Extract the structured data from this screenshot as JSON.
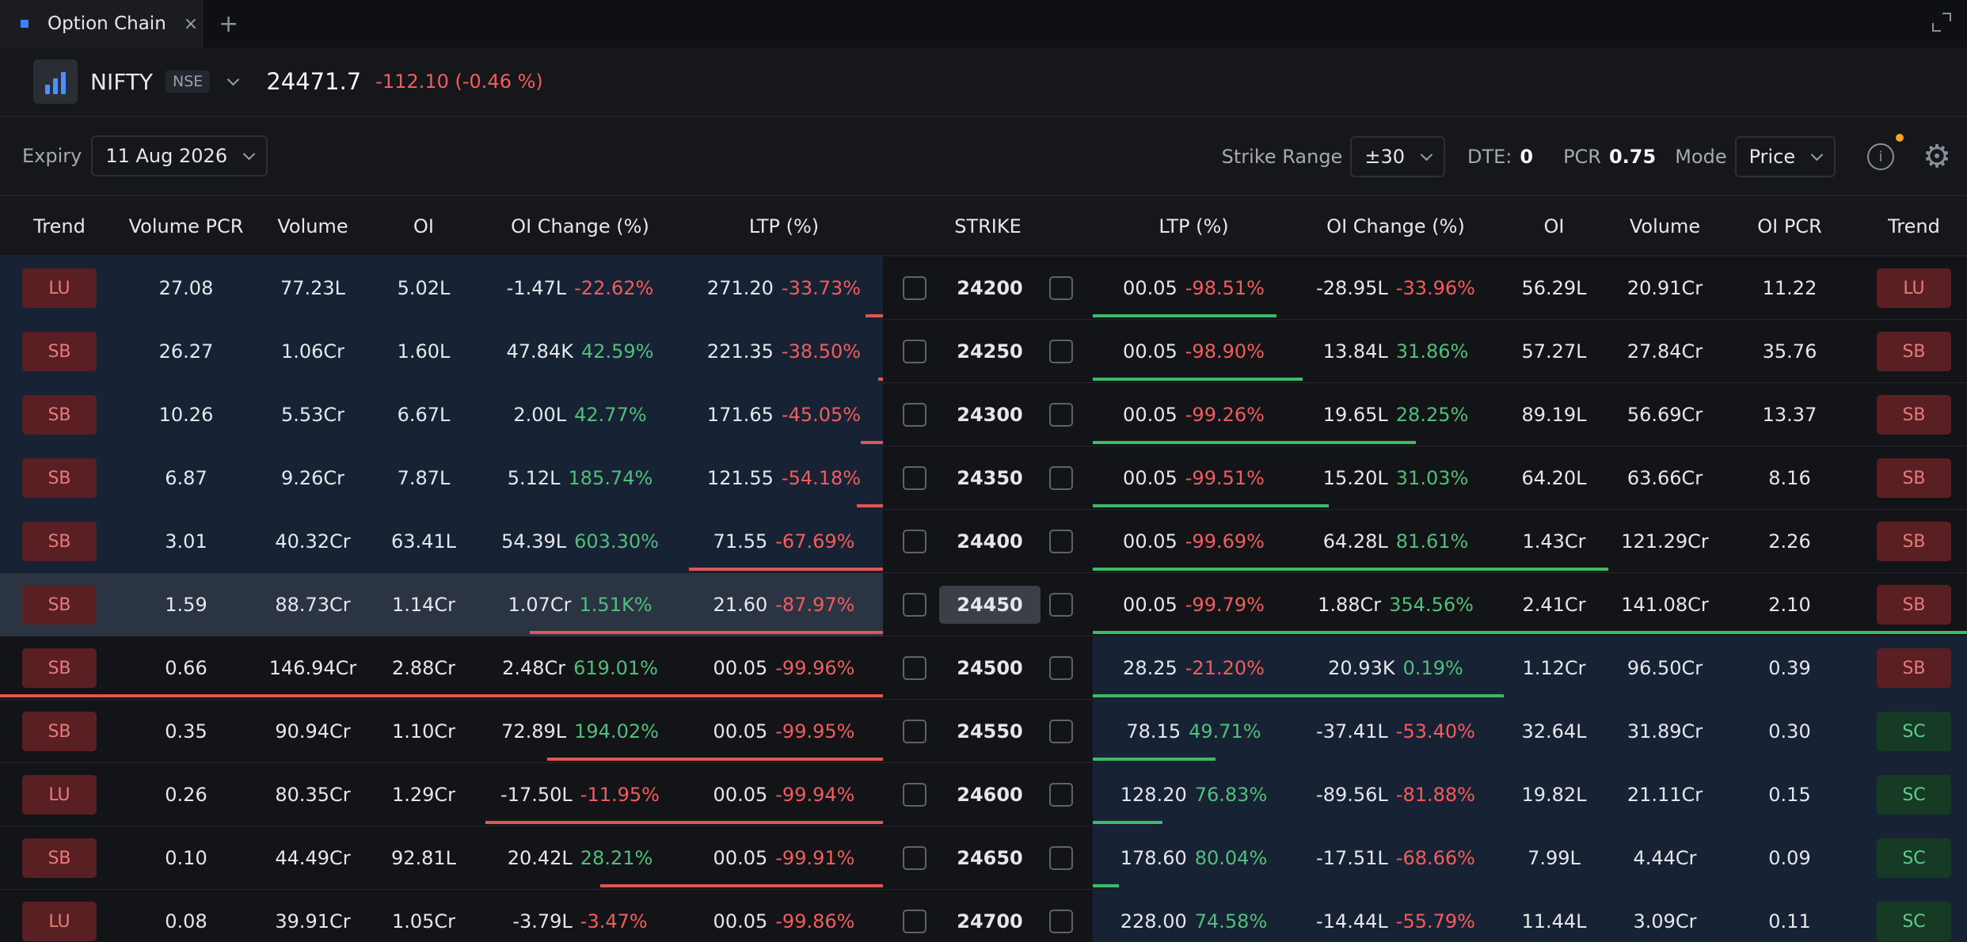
{
  "tab": {
    "label": "Option Chain",
    "close": "×",
    "add": "+"
  },
  "symbol": {
    "name": "NIFTY",
    "exchange": "NSE",
    "price": "24471.7",
    "change": "-112.10 (-0.46 %)"
  },
  "controls": {
    "expiry_label": "Expiry",
    "expiry_value": "11 Aug 2026",
    "strike_range_label": "Strike Range",
    "strike_range_value": "±30",
    "dte_label": "DTE:",
    "dte_value": "0",
    "pcr_label": "PCR",
    "pcr_value": "0.75",
    "mode_label": "Mode",
    "mode_value": "Price",
    "info_glyph": "i"
  },
  "columns": {
    "calls": [
      "Trend",
      "Volume PCR",
      "Volume",
      "OI",
      "OI Change (%)",
      "LTP (%)"
    ],
    "strike": "STRIKE",
    "puts": [
      "LTP (%)",
      "OI Change (%)",
      "OI",
      "Volume",
      "OI PCR",
      "Trend"
    ]
  },
  "colors": {
    "itm_call": "#172234",
    "itm_put": "#172234",
    "atm_row": "#2b3442",
    "red": "#f25c5c",
    "green": "#4fbf7a"
  },
  "rows": [
    {
      "strike": "24200",
      "atm": false,
      "call": {
        "trend": "LU",
        "vol_pcr": "27.08",
        "volume": "77.23L",
        "oi": "5.02L",
        "oi_chg": "-1.47L",
        "oi_chg_pct": "-22.62%",
        "ltp": "271.20",
        "ltp_pct": "-33.73%",
        "bar": 0.02
      },
      "put": {
        "ltp": "00.05",
        "ltp_pct": "-98.51%",
        "oi_chg": "-28.95L",
        "oi_chg_pct": "-33.96%",
        "oi": "56.29L",
        "volume": "20.91Cr",
        "oi_pcr": "11.22",
        "trend": "LU",
        "bar": 0.21
      }
    },
    {
      "strike": "24250",
      "atm": false,
      "call": {
        "trend": "SB",
        "vol_pcr": "26.27",
        "volume": "1.06Cr",
        "oi": "1.60L",
        "oi_chg": "47.84K",
        "oi_chg_pct": "42.59%",
        "ltp": "221.35",
        "ltp_pct": "-38.50%",
        "bar": 0.005
      },
      "put": {
        "ltp": "00.05",
        "ltp_pct": "-98.90%",
        "oi_chg": "13.84L",
        "oi_chg_pct": "31.86%",
        "oi": "57.27L",
        "volume": "27.84Cr",
        "oi_pcr": "35.76",
        "trend": "SB",
        "bar": 0.24
      }
    },
    {
      "strike": "24300",
      "atm": false,
      "call": {
        "trend": "SB",
        "vol_pcr": "10.26",
        "volume": "5.53Cr",
        "oi": "6.67L",
        "oi_chg": "2.00L",
        "oi_chg_pct": "42.77%",
        "ltp": "171.65",
        "ltp_pct": "-45.05%",
        "bar": 0.025
      },
      "put": {
        "ltp": "00.05",
        "ltp_pct": "-99.26%",
        "oi_chg": "19.65L",
        "oi_chg_pct": "28.25%",
        "oi": "89.19L",
        "volume": "56.69Cr",
        "oi_pcr": "13.37",
        "trend": "SB",
        "bar": 0.37
      }
    },
    {
      "strike": "24350",
      "atm": false,
      "call": {
        "trend": "SB",
        "vol_pcr": "6.87",
        "volume": "9.26Cr",
        "oi": "7.87L",
        "oi_chg": "5.12L",
        "oi_chg_pct": "185.74%",
        "ltp": "121.55",
        "ltp_pct": "-54.18%",
        "bar": 0.03
      },
      "put": {
        "ltp": "00.05",
        "ltp_pct": "-99.51%",
        "oi_chg": "15.20L",
        "oi_chg_pct": "31.03%",
        "oi": "64.20L",
        "volume": "63.66Cr",
        "oi_pcr": "8.16",
        "trend": "SB",
        "bar": 0.27
      }
    },
    {
      "strike": "24400",
      "atm": false,
      "call": {
        "trend": "SB",
        "vol_pcr": "3.01",
        "volume": "40.32Cr",
        "oi": "63.41L",
        "oi_chg": "54.39L",
        "oi_chg_pct": "603.30%",
        "ltp": "71.55",
        "ltp_pct": "-67.69%",
        "bar": 0.22
      },
      "put": {
        "ltp": "00.05",
        "ltp_pct": "-99.69%",
        "oi_chg": "64.28L",
        "oi_chg_pct": "81.61%",
        "oi": "1.43Cr",
        "volume": "121.29Cr",
        "oi_pcr": "2.26",
        "trend": "SB",
        "bar": 0.59
      }
    },
    {
      "strike": "24450",
      "atm": true,
      "call": {
        "trend": "SB",
        "vol_pcr": "1.59",
        "volume": "88.73Cr",
        "oi": "1.14Cr",
        "oi_chg": "1.07Cr",
        "oi_chg_pct": "1.51K%",
        "ltp": "21.60",
        "ltp_pct": "-87.97%",
        "bar": 0.4
      },
      "put": {
        "ltp": "00.05",
        "ltp_pct": "-99.79%",
        "oi_chg": "1.88Cr",
        "oi_chg_pct": "354.56%",
        "oi": "2.41Cr",
        "volume": "141.08Cr",
        "oi_pcr": "2.10",
        "trend": "SB",
        "bar": 1.0
      }
    },
    {
      "strike": "24500",
      "atm": false,
      "call": {
        "trend": "SB",
        "vol_pcr": "0.66",
        "volume": "146.94Cr",
        "oi": "2.88Cr",
        "oi_chg": "2.48Cr",
        "oi_chg_pct": "619.01%",
        "ltp": "00.05",
        "ltp_pct": "-99.96%",
        "bar": 1.0
      },
      "put": {
        "ltp": "28.25",
        "ltp_pct": "-21.20%",
        "oi_chg": "20.93K",
        "oi_chg_pct": "0.19%",
        "oi": "1.12Cr",
        "volume": "96.50Cr",
        "oi_pcr": "0.39",
        "trend": "SB",
        "bar": 0.47
      }
    },
    {
      "strike": "24550",
      "atm": false,
      "call": {
        "trend": "SB",
        "vol_pcr": "0.35",
        "volume": "90.94Cr",
        "oi": "1.10Cr",
        "oi_chg": "72.89L",
        "oi_chg_pct": "194.02%",
        "ltp": "00.05",
        "ltp_pct": "-99.95%",
        "bar": 0.38
      },
      "put": {
        "ltp": "78.15",
        "ltp_pct": "49.71%",
        "oi_chg": "-37.41L",
        "oi_chg_pct": "-53.40%",
        "oi": "32.64L",
        "volume": "31.89Cr",
        "oi_pcr": "0.30",
        "trend": "SC",
        "bar": 0.14
      }
    },
    {
      "strike": "24600",
      "atm": false,
      "call": {
        "trend": "LU",
        "vol_pcr": "0.26",
        "volume": "80.35Cr",
        "oi": "1.29Cr",
        "oi_chg": "-17.50L",
        "oi_chg_pct": "-11.95%",
        "ltp": "00.05",
        "ltp_pct": "-99.94%",
        "bar": 0.45
      },
      "put": {
        "ltp": "128.20",
        "ltp_pct": "76.83%",
        "oi_chg": "-89.56L",
        "oi_chg_pct": "-81.88%",
        "oi": "19.82L",
        "volume": "21.11Cr",
        "oi_pcr": "0.15",
        "trend": "SC",
        "bar": 0.08
      }
    },
    {
      "strike": "24650",
      "atm": false,
      "call": {
        "trend": "SB",
        "vol_pcr": "0.10",
        "volume": "44.49Cr",
        "oi": "92.81L",
        "oi_chg": "20.42L",
        "oi_chg_pct": "28.21%",
        "ltp": "00.05",
        "ltp_pct": "-99.91%",
        "bar": 0.32
      },
      "put": {
        "ltp": "178.60",
        "ltp_pct": "80.04%",
        "oi_chg": "-17.51L",
        "oi_chg_pct": "-68.66%",
        "oi": "7.99L",
        "volume": "4.44Cr",
        "oi_pcr": "0.09",
        "trend": "SC",
        "bar": 0.03
      }
    },
    {
      "strike": "24700",
      "atm": false,
      "call": {
        "trend": "LU",
        "vol_pcr": "0.08",
        "volume": "39.91Cr",
        "oi": "1.05Cr",
        "oi_chg": "-3.79L",
        "oi_chg_pct": "-3.47%",
        "ltp": "00.05",
        "ltp_pct": "-99.86%",
        "bar": 0.37
      },
      "put": {
        "ltp": "228.00",
        "ltp_pct": "74.58%",
        "oi_chg": "-14.44L",
        "oi_chg_pct": "-55.79%",
        "oi": "11.44L",
        "volume": "3.09Cr",
        "oi_pcr": "0.11",
        "trend": "SC",
        "bar": 0.05
      }
    }
  ]
}
